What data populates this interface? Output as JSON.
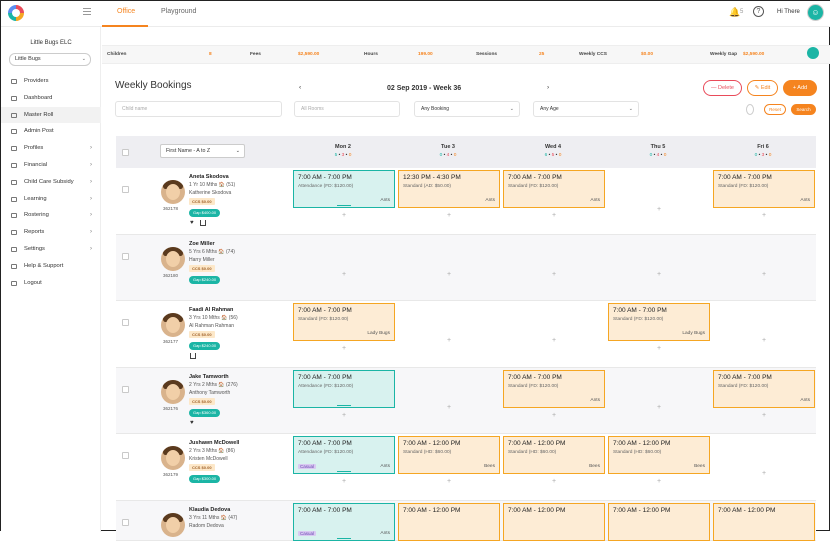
{
  "header": {
    "tabs": [
      {
        "label": "Office"
      },
      {
        "label": "Playground"
      }
    ],
    "notification_count": "5",
    "greeting": "Hi There",
    "help_label": "?"
  },
  "sidebar": {
    "org_name": "Little Bugs ELC",
    "center_select": "Little Bugs",
    "items": [
      {
        "label": "Providers",
        "has_arrow": false
      },
      {
        "label": "Dashboard",
        "has_arrow": false
      },
      {
        "label": "Master Roll",
        "has_arrow": false
      },
      {
        "label": "Admin Post",
        "has_arrow": false
      },
      {
        "label": "Profiles",
        "has_arrow": true
      },
      {
        "label": "Financial",
        "has_arrow": true
      },
      {
        "label": "Child Care Subsidy",
        "has_arrow": true
      },
      {
        "label": "Learning",
        "has_arrow": true
      },
      {
        "label": "Rostering",
        "has_arrow": true
      },
      {
        "label": "Reports",
        "has_arrow": true
      },
      {
        "label": "Settings",
        "has_arrow": true
      },
      {
        "label": "Help & Support",
        "has_arrow": false
      },
      {
        "label": "Logout",
        "has_arrow": false
      }
    ]
  },
  "stats": [
    {
      "label": "Children",
      "value": "8"
    },
    {
      "label": "Fees",
      "value": "$2,590.00"
    },
    {
      "label": "Hours",
      "value": "199.00"
    },
    {
      "label": "Sessions",
      "value": "25"
    },
    {
      "label": "Weekly CCS",
      "value": "$0.00"
    },
    {
      "label": "Weekly Gap",
      "value": "$2,590.00"
    }
  ],
  "page": {
    "title": "Weekly Bookings",
    "week_title": "02 Sep 2019 - Week 36",
    "prev": "‹",
    "next": "›"
  },
  "actions": {
    "delete": "— Delete",
    "edit": "✎ Edit",
    "add": "+ Add"
  },
  "filters": {
    "child_name_placeholder": "Child name",
    "rooms_placeholder": "All Rooms",
    "booking": "Any Booking",
    "age": "Any Age",
    "reset": "Reset",
    "search": "Search"
  },
  "table": {
    "sort": "First Name - A to Z",
    "days": [
      {
        "name": "Mon 2",
        "g": "5",
        "r": "3",
        "o": "0"
      },
      {
        "name": "Tue 3",
        "g": "0",
        "r": "4",
        "o": "0"
      },
      {
        "name": "Wed 4",
        "g": "6",
        "r": "5",
        "o": "0"
      },
      {
        "name": "Thu 5",
        "g": "0",
        "r": "4",
        "o": "0"
      },
      {
        "name": "Fri 6",
        "g": "0",
        "r": "3",
        "o": "0"
      }
    ]
  },
  "children": [
    {
      "name": "Aneta Skodova",
      "age": "1 Yr 10 Mths",
      "count": "51",
      "parent": "Katherine Skodova",
      "ccs": "CCS $0.00",
      "gap": "Gap $400.00",
      "id": "362178"
    },
    {
      "name": "Zoe Miller",
      "age": "5 Yrs 6 Mths",
      "count": "74",
      "parent": "Harry Miller",
      "ccs": "CCS $0.00",
      "gap": "Gap $240.00",
      "id": "362180"
    },
    {
      "name": "Faadi Al Rahman",
      "age": "3 Yrs 10 Mths",
      "count": "56",
      "parent": "Al Rahman Rahman",
      "ccs": "CCS $0.00",
      "gap": "Gap $240.00",
      "id": "362177"
    },
    {
      "name": "Jake Tamworth",
      "age": "2 Yrs 2 Mths",
      "count": "276",
      "parent": "Anthony Tamworth",
      "ccs": "CCS $0.00",
      "gap": "Gap $360.00",
      "id": "362176"
    },
    {
      "name": "Jushawn McDowell",
      "age": "2 Yrs 3 Mths",
      "count": "86",
      "parent": "Kristen McDowell",
      "ccs": "CCS $0.00",
      "gap": "Gap $300.00",
      "id": "362179"
    },
    {
      "name": "Klaudia Dedova",
      "age": "3 Yrs 11 Mths",
      "count": "47",
      "parent": "Radom Dedova",
      "ccs": "",
      "gap": "",
      "id": ""
    }
  ],
  "bookings": {
    "a1": {
      "time": "7:00 AM - 7:00 PM",
      "desc": "Attendance (FD: $120.00)",
      "room": "Ants"
    },
    "a2": {
      "time": "12:30 PM - 4:30 PM",
      "desc": "Standard (AD: $50.00)",
      "room": "Ants"
    },
    "a3": {
      "time": "7:00 AM - 7:00 PM",
      "desc": "Standard (FD: $120.00)",
      "room": "Ants"
    },
    "a5": {
      "time": "7:00 AM - 7:00 PM",
      "desc": "Standard (FD: $120.00)",
      "room": "Ants"
    },
    "f1": {
      "time": "7:00 AM - 7:00 PM",
      "desc": "Standard (FD: $120.00)",
      "room": "Lady Bugs"
    },
    "f4": {
      "time": "7:00 AM - 7:00 PM",
      "desc": "Standard (FD: $120.00)",
      "room": "Lady Bugs"
    },
    "j1": {
      "time": "7:00 AM - 7:00 PM",
      "desc": "Attendance (FD: $120.00)",
      "room": ""
    },
    "j3": {
      "time": "7:00 AM - 7:00 PM",
      "desc": "Standard (FD: $120.00)",
      "room": "Ants"
    },
    "j5": {
      "time": "7:00 AM - 7:00 PM",
      "desc": "Standard (FD: $120.00)",
      "room": "Ants"
    },
    "m1": {
      "time": "7:00 AM - 7:00 PM",
      "desc": "Attendance (FD: $120.00)",
      "room": "Ants",
      "tag": "Casual"
    },
    "m2": {
      "time": "7:00 AM - 12:00 PM",
      "desc": "Standard (HD: $60.00)",
      "room": "Bees"
    },
    "m3": {
      "time": "7:00 AM - 12:00 PM",
      "desc": "Standard (HD: $60.00)",
      "room": "Bees"
    },
    "m4": {
      "time": "7:00 AM - 12:00 PM",
      "desc": "Standard (HD: $60.00)",
      "room": "Bees"
    },
    "k1": {
      "time": "7:00 AM - 7:00 PM",
      "desc": "",
      "room": "Ants",
      "tag": "Casual"
    },
    "k2": {
      "time": "7:00 AM - 12:00 PM",
      "desc": "",
      "room": ""
    },
    "k3": {
      "time": "7:00 AM - 12:00 PM",
      "desc": "",
      "room": ""
    },
    "k4": {
      "time": "7:00 AM - 12:00 PM",
      "desc": "",
      "room": ""
    },
    "k5": {
      "time": "7:00 AM - 12:00 PM",
      "desc": "",
      "room": ""
    }
  },
  "colors": {
    "accent": "#f5841f",
    "teal": "#1bb5a5",
    "danger": "#e94b5a"
  }
}
